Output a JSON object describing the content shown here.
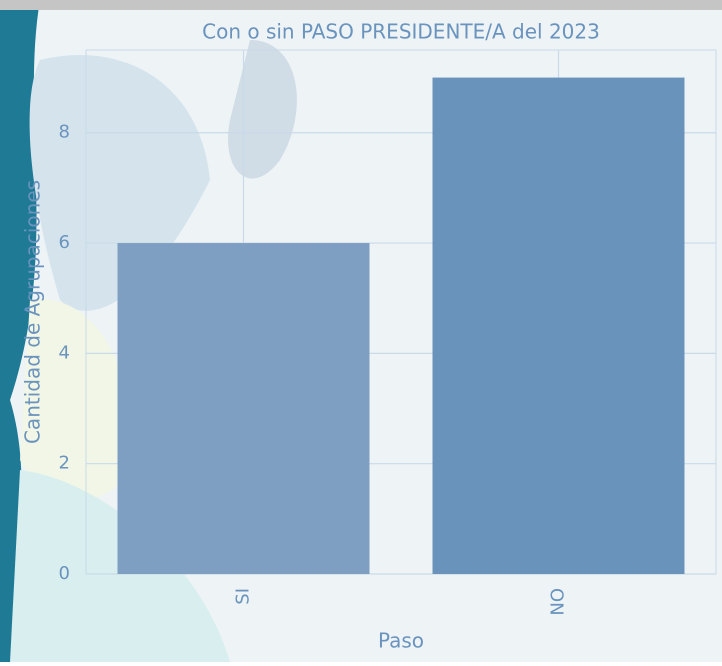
{
  "chart_data": {
    "type": "bar",
    "title": "Con o sin PASO PRESIDENTE/A del 2023",
    "x_label": "Paso",
    "y_label": "Cantidad de Agrupaciones",
    "categories": [
      "SI",
      "NO"
    ],
    "values": [
      6,
      9
    ],
    "colors": [
      "#7f9fc2",
      "#6993bb"
    ],
    "ylim": [
      0,
      9.5
    ],
    "yticks": [
      0,
      2,
      4,
      6,
      8
    ],
    "grid": true
  }
}
